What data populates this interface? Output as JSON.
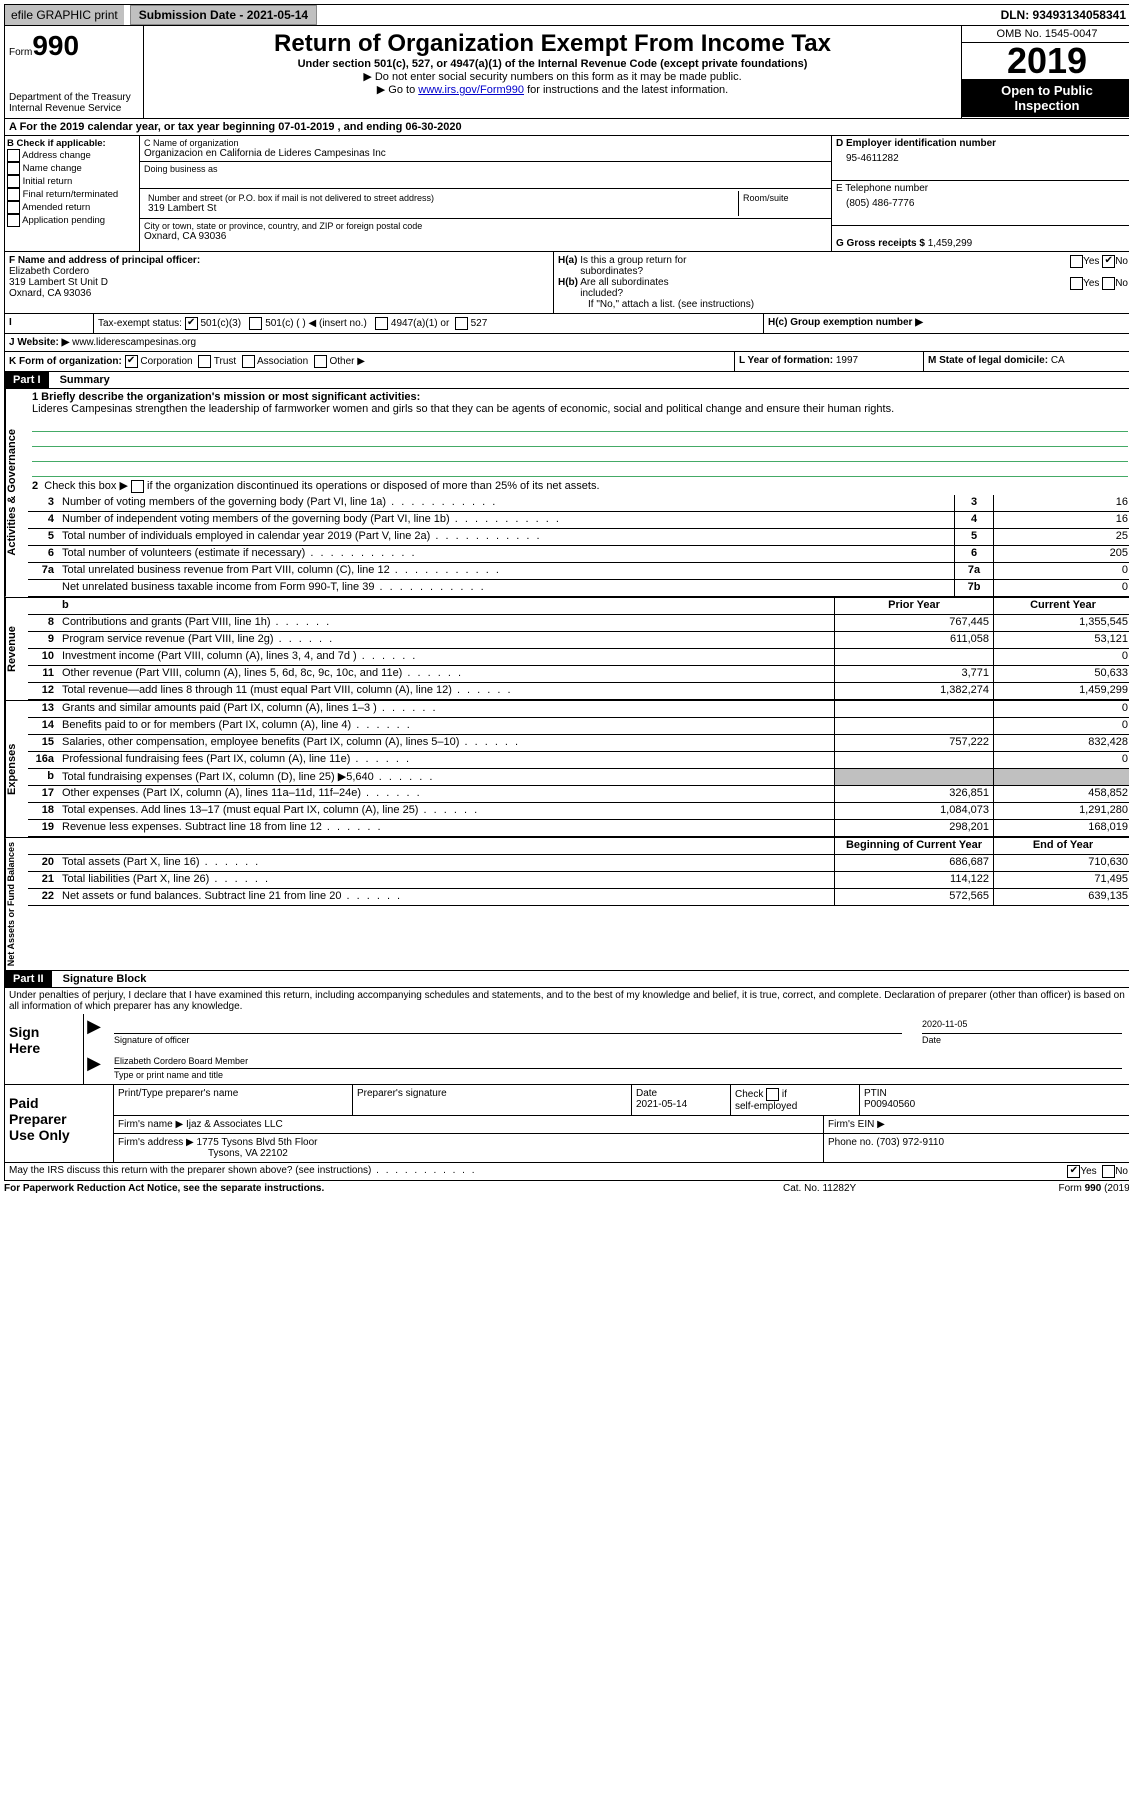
{
  "topbar": {
    "efile": "efile GRAPHIC print",
    "submission_label": "Submission Date - 2021-05-14",
    "dln": "DLN: 93493134058341"
  },
  "header": {
    "form_word": "Form",
    "form_num": "990",
    "dept": "Department of the Treasury\nInternal Revenue Service",
    "title": "Return of Organization Exempt From Income Tax",
    "sub1": "Under section 501(c), 527, or 4947(a)(1) of the Internal Revenue Code (except private foundations)",
    "sub2": "Do not enter social security numbers on this form as it may be made public.",
    "sub3_pre": "Go to ",
    "sub3_link": "www.irs.gov/Form990",
    "sub3_post": " for instructions and the latest information.",
    "omb": "OMB No. 1545-0047",
    "year": "2019",
    "inspection": "Open to Public\nInspection"
  },
  "lineA": "A For the 2019 calendar year, or tax year beginning 07-01-2019     , and ending 06-30-2020",
  "boxB": {
    "title": "B Check if applicable:",
    "items": [
      "Address change",
      "Name change",
      "Initial return",
      "Final return/terminated",
      "Amended return",
      "Application pending"
    ]
  },
  "boxC": {
    "label_name": "C Name of organization",
    "name": "Organizacion en California de Lideres Campesinas Inc",
    "dba_label": "Doing business as",
    "addr_label": "Number and street (or P.O. box if mail is not delivered to street address)",
    "room_label": "Room/suite",
    "addr": "319 Lambert St",
    "city_label": "City or town, state or province, country, and ZIP or foreign postal code",
    "city": "Oxnard, CA  93036"
  },
  "boxD": {
    "label": "D Employer identification number",
    "val": "95-4611282"
  },
  "boxE": {
    "label": "E Telephone number",
    "val": "(805) 486-7776"
  },
  "boxG": {
    "label": "G Gross receipts $",
    "val": "1,459,299"
  },
  "boxF": {
    "label": "F  Name and address of principal officer:",
    "name": "Elizabeth Cordero",
    "addr1": "319 Lambert St Unit D",
    "addr2": "Oxnard, CA  93036"
  },
  "boxH": {
    "a": "H(a)  Is this a group return for subordinates?",
    "b": "H(b)  Are all subordinates included?",
    "b_note": "If \"No,\" attach a list. (see instructions)",
    "c": "H(c)  Group exemption number ▶",
    "yes": "Yes",
    "no": "No"
  },
  "boxI": {
    "label": "Tax-exempt status:",
    "opts": [
      "501(c)(3)",
      "501(c) (   ) ◀ (insert no.)",
      "4947(a)(1) or",
      "527"
    ]
  },
  "boxJ": {
    "label": "J",
    "text": "Website: ▶",
    "val": "www.liderescampesinas.org"
  },
  "boxK": {
    "label": "K Form of organization:",
    "opts": [
      "Corporation",
      "Trust",
      "Association",
      "Other ▶"
    ]
  },
  "boxL": {
    "label": "L Year of formation:",
    "val": "1997"
  },
  "boxM": {
    "label": "M State of legal domicile:",
    "val": "CA"
  },
  "part1": {
    "num": "Part I",
    "title": "Summary"
  },
  "summary": {
    "l1_label": "1  Briefly describe the organization's mission or most significant activities:",
    "l1_text": "Lideres Campesinas strengthen the leadership of farmworker women and girls so that they can be agents of economic, social and political change and ensure their human rights.",
    "l2": "Check this box ▶        if the organization discontinued its operations or disposed of more than 25% of its net assets.",
    "sections": {
      "gov": "Activities & Governance",
      "rev": "Revenue",
      "exp": "Expenses",
      "net": "Net Assets or Fund Balances"
    },
    "rows_gov": [
      {
        "n": "3",
        "d": "Number of voting members of the governing body (Part VI, line 1a)",
        "box": "3",
        "v": "16"
      },
      {
        "n": "4",
        "d": "Number of independent voting members of the governing body (Part VI, line 1b)",
        "box": "4",
        "v": "16"
      },
      {
        "n": "5",
        "d": "Total number of individuals employed in calendar year 2019 (Part V, line 2a)",
        "box": "5",
        "v": "25"
      },
      {
        "n": "6",
        "d": "Total number of volunteers (estimate if necessary)",
        "box": "6",
        "v": "205"
      },
      {
        "n": "7a",
        "d": "Total unrelated business revenue from Part VIII, column (C), line 12",
        "box": "7a",
        "v": "0"
      },
      {
        "n": "",
        "d": "Net unrelated business taxable income from Form 990-T, line 39",
        "box": "7b",
        "v": "0"
      }
    ],
    "hdr_prior": "Prior Year",
    "hdr_curr": "Current Year",
    "rows_rev": [
      {
        "n": "8",
        "d": "Contributions and grants (Part VIII, line 1h)",
        "p": "767,445",
        "c": "1,355,545"
      },
      {
        "n": "9",
        "d": "Program service revenue (Part VIII, line 2g)",
        "p": "611,058",
        "c": "53,121"
      },
      {
        "n": "10",
        "d": "Investment income (Part VIII, column (A), lines 3, 4, and 7d )",
        "p": "",
        "c": "0"
      },
      {
        "n": "11",
        "d": "Other revenue (Part VIII, column (A), lines 5, 6d, 8c, 9c, 10c, and 11e)",
        "p": "3,771",
        "c": "50,633"
      },
      {
        "n": "12",
        "d": "Total revenue—add lines 8 through 11 (must equal Part VIII, column (A), line 12)",
        "p": "1,382,274",
        "c": "1,459,299"
      }
    ],
    "rows_exp": [
      {
        "n": "13",
        "d": "Grants and similar amounts paid (Part IX, column (A), lines 1–3 )",
        "p": "",
        "c": "0"
      },
      {
        "n": "14",
        "d": "Benefits paid to or for members (Part IX, column (A), line 4)",
        "p": "",
        "c": "0"
      },
      {
        "n": "15",
        "d": "Salaries, other compensation, employee benefits (Part IX, column (A), lines 5–10)",
        "p": "757,222",
        "c": "832,428"
      },
      {
        "n": "16a",
        "d": "Professional fundraising fees (Part IX, column (A), line 11e)",
        "p": "",
        "c": "0"
      },
      {
        "n": "b",
        "d": "Total fundraising expenses (Part IX, column (D), line 25) ▶5,640",
        "p": "SHADE",
        "c": "SHADE"
      },
      {
        "n": "17",
        "d": "Other expenses (Part IX, column (A), lines 11a–11d, 11f–24e)",
        "p": "326,851",
        "c": "458,852"
      },
      {
        "n": "18",
        "d": "Total expenses. Add lines 13–17 (must equal Part IX, column (A), line 25)",
        "p": "1,084,073",
        "c": "1,291,280"
      },
      {
        "n": "19",
        "d": "Revenue less expenses. Subtract line 18 from line 12",
        "p": "298,201",
        "c": "168,019"
      }
    ],
    "hdr_beg": "Beginning of Current Year",
    "hdr_end": "End of Year",
    "rows_net": [
      {
        "n": "20",
        "d": "Total assets (Part X, line 16)",
        "p": "686,687",
        "c": "710,630"
      },
      {
        "n": "21",
        "d": "Total liabilities (Part X, line 26)",
        "p": "114,122",
        "c": "71,495"
      },
      {
        "n": "22",
        "d": "Net assets or fund balances. Subtract line 21 from line 20",
        "p": "572,565",
        "c": "639,135"
      }
    ]
  },
  "part2": {
    "num": "Part II",
    "title": "Signature Block",
    "penalties": "Under penalties of perjury, I declare that I have examined this return, including accompanying schedules and statements, and to the best of my knowledge and belief, it is true, correct, and complete. Declaration of preparer (other than officer) is based on all information of which preparer has any knowledge."
  },
  "sign": {
    "label": "Sign Here",
    "sig_officer": "Signature of officer",
    "date": "Date",
    "date_val": "2020-11-05",
    "name_val": "Elizabeth Cordero  Board Member",
    "name_label": "Type or print name and title"
  },
  "paid": {
    "label": "Paid Preparer Use Only",
    "r1": {
      "c1": "Print/Type preparer's name",
      "c2": "Preparer's signature",
      "c3": "Date",
      "c3v": "2021-05-14",
      "c4": "Check        if self-employed",
      "c5": "PTIN",
      "c5v": "P00940560"
    },
    "r2": {
      "c1": "Firm's name    ▶",
      "c1v": "Ijaz & Associates LLC",
      "c2": "Firm's EIN ▶"
    },
    "r3": {
      "c1": "Firm's address ▶",
      "c1v": "1775 Tysons Blvd 5th Floor",
      "c1v2": "Tysons, VA  22102",
      "c2": "Phone no. (703) 972-9110"
    }
  },
  "discuss": "May the IRS discuss this return with the preparer shown above? (see instructions)",
  "footer": {
    "l": "For Paperwork Reduction Act Notice, see the separate instructions.",
    "m": "Cat. No. 11282Y",
    "r": "Form 990 (2019)"
  }
}
